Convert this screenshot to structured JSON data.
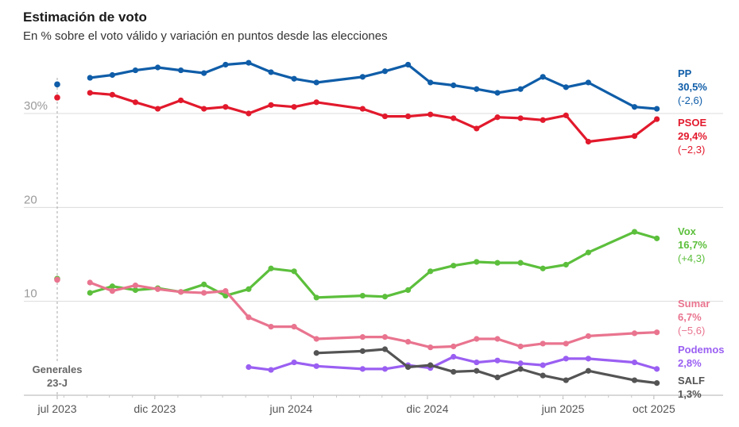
{
  "title": "Estimación de voto",
  "subtitle": "En % sobre el voto válido y variación en puntos desde las elecciones",
  "chart_data": {
    "type": "line",
    "title": "Estimación de voto",
    "subtitle": "En % sobre el voto válido y variación en puntos desde las elecciones",
    "ylim": [
      0,
      36
    ],
    "xlim": [
      "2023-07-23",
      "2025-10-15"
    ],
    "y_ticks": [
      {
        "value": 30,
        "label": "30%"
      },
      {
        "value": 20,
        "label": "20"
      },
      {
        "value": 10,
        "label": "10"
      }
    ],
    "x_ticks": [
      {
        "date": "2023-07-23",
        "label": "jul 2023"
      },
      {
        "date": "2023-12-01",
        "label": "dic 2023"
      },
      {
        "date": "2024-06-01",
        "label": "jun 2024"
      },
      {
        "date": "2024-12-01",
        "label": "dic 2024"
      },
      {
        "date": "2025-06-01",
        "label": "jun 2025"
      },
      {
        "date": "2025-10-01",
        "label": "oct 2025"
      }
    ],
    "election_marker": {
      "date": "2023-07-23",
      "label_line1": "Generales",
      "label_line2": "23-J"
    },
    "grid": true,
    "legend": "right, labels at line ends",
    "series": [
      {
        "name": "PP",
        "value_label": "30,5%",
        "change_label": "(-2,6)",
        "color": "#0f5da8",
        "election_value": 33.1,
        "points": [
          [
            "2023-09-05",
            33.8
          ],
          [
            "2023-10-05",
            34.1
          ],
          [
            "2023-11-05",
            34.6
          ],
          [
            "2023-12-05",
            34.9
          ],
          [
            "2024-01-05",
            34.6
          ],
          [
            "2024-02-05",
            34.3
          ],
          [
            "2024-03-05",
            35.2
          ],
          [
            "2024-04-05",
            35.4
          ],
          [
            "2024-05-05",
            34.4
          ],
          [
            "2024-06-05",
            33.7
          ],
          [
            "2024-07-05",
            33.3
          ],
          [
            "2024-09-05",
            33.9
          ],
          [
            "2024-10-05",
            34.5
          ],
          [
            "2024-11-05",
            35.2
          ],
          [
            "2024-12-05",
            33.3
          ],
          [
            "2025-01-05",
            33.0
          ],
          [
            "2025-02-05",
            32.6
          ],
          [
            "2025-03-05",
            32.2
          ],
          [
            "2025-04-05",
            32.6
          ],
          [
            "2025-05-05",
            33.9
          ],
          [
            "2025-06-05",
            32.8
          ],
          [
            "2025-07-05",
            33.3
          ],
          [
            "2025-09-05",
            30.7
          ],
          [
            "2025-10-05",
            30.5
          ]
        ]
      },
      {
        "name": "PSOE",
        "value_label": "29,4%",
        "change_label": "(−2,3)",
        "color": "#e2192c",
        "election_value": 31.7,
        "points": [
          [
            "2023-09-05",
            32.2
          ],
          [
            "2023-10-05",
            32.0
          ],
          [
            "2023-11-05",
            31.2
          ],
          [
            "2023-12-05",
            30.5
          ],
          [
            "2024-01-05",
            31.4
          ],
          [
            "2024-02-05",
            30.5
          ],
          [
            "2024-03-05",
            30.7
          ],
          [
            "2024-04-05",
            30.0
          ],
          [
            "2024-05-05",
            30.9
          ],
          [
            "2024-06-05",
            30.7
          ],
          [
            "2024-07-05",
            31.2
          ],
          [
            "2024-09-05",
            30.5
          ],
          [
            "2024-10-05",
            29.7
          ],
          [
            "2024-11-05",
            29.7
          ],
          [
            "2024-12-05",
            29.9
          ],
          [
            "2025-01-05",
            29.5
          ],
          [
            "2025-02-05",
            28.4
          ],
          [
            "2025-03-05",
            29.6
          ],
          [
            "2025-04-05",
            29.5
          ],
          [
            "2025-05-05",
            29.3
          ],
          [
            "2025-06-05",
            29.8
          ],
          [
            "2025-07-05",
            27.0
          ],
          [
            "2025-09-05",
            27.6
          ],
          [
            "2025-10-05",
            29.4
          ]
        ]
      },
      {
        "name": "Vox",
        "value_label": "16,7%",
        "change_label": "(+4,3)",
        "color": "#5cbf3c",
        "election_value": 12.4,
        "points": [
          [
            "2023-09-05",
            10.9
          ],
          [
            "2023-10-05",
            11.6
          ],
          [
            "2023-11-05",
            11.2
          ],
          [
            "2023-12-05",
            11.4
          ],
          [
            "2024-01-05",
            11.0
          ],
          [
            "2024-02-05",
            11.8
          ],
          [
            "2024-03-05",
            10.6
          ],
          [
            "2024-04-05",
            11.3
          ],
          [
            "2024-05-05",
            13.5
          ],
          [
            "2024-06-05",
            13.2
          ],
          [
            "2024-07-05",
            10.4
          ],
          [
            "2024-09-05",
            10.6
          ],
          [
            "2024-10-05",
            10.5
          ],
          [
            "2024-11-05",
            11.2
          ],
          [
            "2024-12-05",
            13.2
          ],
          [
            "2025-01-05",
            13.8
          ],
          [
            "2025-02-05",
            14.2
          ],
          [
            "2025-03-05",
            14.1
          ],
          [
            "2025-04-05",
            14.1
          ],
          [
            "2025-05-05",
            13.5
          ],
          [
            "2025-06-05",
            13.9
          ],
          [
            "2025-07-05",
            15.2
          ],
          [
            "2025-09-05",
            17.4
          ],
          [
            "2025-10-05",
            16.7
          ]
        ]
      },
      {
        "name": "Sumar",
        "value_label": "6,7%",
        "change_label": "(−5,6)",
        "color": "#e9748f",
        "election_value": 12.3,
        "points": [
          [
            "2023-09-05",
            12.0
          ],
          [
            "2023-10-05",
            11.1
          ],
          [
            "2023-11-05",
            11.7
          ],
          [
            "2023-12-05",
            11.3
          ],
          [
            "2024-01-05",
            11.0
          ],
          [
            "2024-02-05",
            10.9
          ],
          [
            "2024-03-05",
            11.1
          ],
          [
            "2024-04-05",
            8.3
          ],
          [
            "2024-05-05",
            7.3
          ],
          [
            "2024-06-05",
            7.3
          ],
          [
            "2024-07-05",
            6.0
          ],
          [
            "2024-09-05",
            6.2
          ],
          [
            "2024-10-05",
            6.2
          ],
          [
            "2024-11-05",
            5.7
          ],
          [
            "2024-12-05",
            5.1
          ],
          [
            "2025-01-05",
            5.2
          ],
          [
            "2025-02-05",
            6.0
          ],
          [
            "2025-03-05",
            6.0
          ],
          [
            "2025-04-05",
            5.2
          ],
          [
            "2025-05-05",
            5.5
          ],
          [
            "2025-06-05",
            5.5
          ],
          [
            "2025-07-05",
            6.3
          ],
          [
            "2025-09-05",
            6.6
          ],
          [
            "2025-10-05",
            6.7
          ]
        ]
      },
      {
        "name": "Podemos",
        "value_label": "2,8%",
        "change_label": "",
        "color": "#9a5ff2",
        "points": [
          [
            "2024-04-05",
            3.0
          ],
          [
            "2024-05-05",
            2.7
          ],
          [
            "2024-06-05",
            3.5
          ],
          [
            "2024-07-05",
            3.1
          ],
          [
            "2024-09-05",
            2.8
          ],
          [
            "2024-10-05",
            2.8
          ],
          [
            "2024-11-05",
            3.2
          ],
          [
            "2024-12-05",
            2.9
          ],
          [
            "2025-01-05",
            4.1
          ],
          [
            "2025-02-05",
            3.5
          ],
          [
            "2025-03-05",
            3.7
          ],
          [
            "2025-04-05",
            3.4
          ],
          [
            "2025-05-05",
            3.2
          ],
          [
            "2025-06-05",
            3.9
          ],
          [
            "2025-07-05",
            3.9
          ],
          [
            "2025-09-05",
            3.5
          ],
          [
            "2025-10-05",
            2.8
          ]
        ]
      },
      {
        "name": "SALF",
        "value_label": "1,3%",
        "change_label": "",
        "color": "#545454",
        "points": [
          [
            "2024-07-05",
            4.5
          ],
          [
            "2024-09-05",
            4.7
          ],
          [
            "2024-10-05",
            4.9
          ],
          [
            "2024-11-05",
            3.0
          ],
          [
            "2024-12-05",
            3.2
          ],
          [
            "2025-01-05",
            2.5
          ],
          [
            "2025-02-05",
            2.6
          ],
          [
            "2025-03-05",
            1.9
          ],
          [
            "2025-04-05",
            2.8
          ],
          [
            "2025-05-05",
            2.1
          ],
          [
            "2025-06-05",
            1.6
          ],
          [
            "2025-07-05",
            2.6
          ],
          [
            "2025-09-05",
            1.6
          ],
          [
            "2025-10-05",
            1.3
          ]
        ]
      }
    ]
  }
}
